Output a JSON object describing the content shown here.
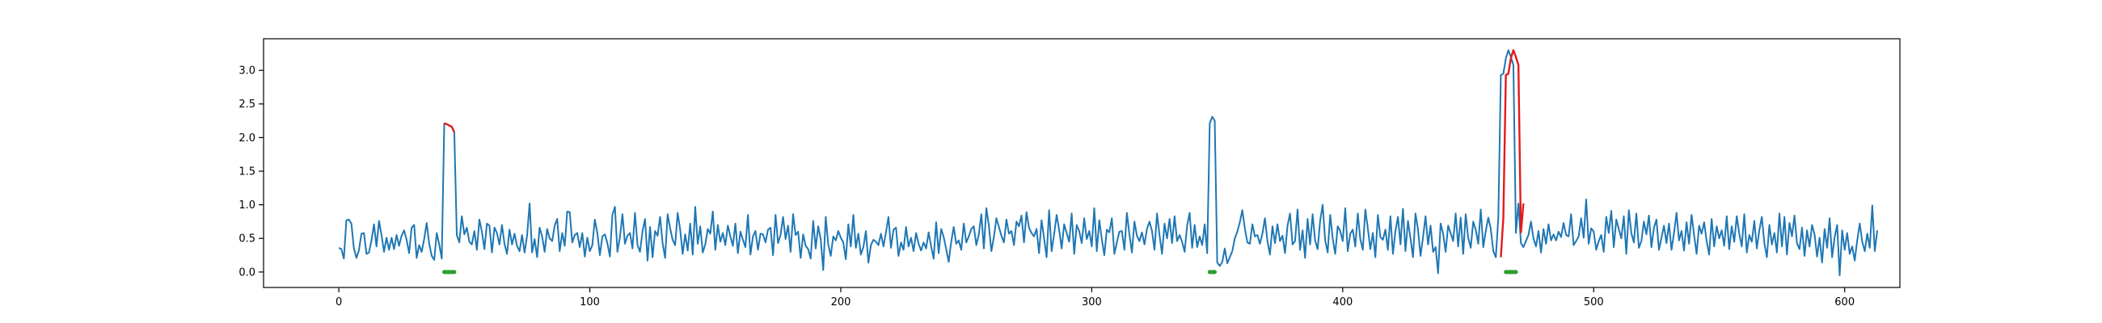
{
  "chart_data": {
    "type": "line",
    "title": "",
    "xlabel": "",
    "ylabel": "",
    "xlim": [
      -30,
      622
    ],
    "ylim": [
      -0.23,
      3.47
    ],
    "grid": false,
    "x_ticks": [
      0,
      100,
      200,
      300,
      400,
      500,
      600
    ],
    "x_tick_labels": [
      "0",
      "100",
      "200",
      "300",
      "400",
      "500",
      "600"
    ],
    "y_ticks": [
      0.0,
      0.5,
      1.0,
      1.5,
      2.0,
      2.5,
      3.0
    ],
    "y_tick_labels": [
      "0.0",
      "0.5",
      "1.0",
      "1.5",
      "2.0",
      "2.5",
      "3.0"
    ],
    "colors": {
      "signal": "#1f77b4",
      "anomaly": "#e41a1c",
      "event": "#2ca02c"
    },
    "series": [
      {
        "role": "signal",
        "x_start": 0,
        "y": [
          0.36,
          0.34,
          0.2,
          0.77,
          0.78,
          0.72,
          0.35,
          0.21,
          0.32,
          0.57,
          0.58,
          0.27,
          0.29,
          0.47,
          0.71,
          0.38,
          0.76,
          0.55,
          0.3,
          0.51,
          0.33,
          0.51,
          0.34,
          0.55,
          0.39,
          0.54,
          0.62,
          0.48,
          0.28,
          0.66,
          0.7,
          0.21,
          0.4,
          0.3,
          0.49,
          0.73,
          0.42,
          0.24,
          0.18,
          0.58,
          0.41,
          0.2,
          2.21,
          2.2,
          2.18,
          2.16,
          2.08,
          0.55,
          0.44,
          0.83,
          0.56,
          0.66,
          0.45,
          0.41,
          0.61,
          0.33,
          0.78,
          0.6,
          0.34,
          0.72,
          0.69,
          0.29,
          0.66,
          0.58,
          0.41,
          0.7,
          0.42,
          0.27,
          0.63,
          0.41,
          0.57,
          0.39,
          0.31,
          0.55,
          0.29,
          0.54,
          1.02,
          0.29,
          0.49,
          0.22,
          0.66,
          0.53,
          0.3,
          0.64,
          0.5,
          0.46,
          0.69,
          0.79,
          0.31,
          0.58,
          0.39,
          0.9,
          0.89,
          0.44,
          0.55,
          0.58,
          0.37,
          0.58,
          0.23,
          0.51,
          0.31,
          0.4,
          0.78,
          0.58,
          0.25,
          0.53,
          0.56,
          0.43,
          0.23,
          0.85,
          0.97,
          0.3,
          0.52,
          0.86,
          0.42,
          0.54,
          0.58,
          0.35,
          0.88,
          0.4,
          0.3,
          0.61,
          0.79,
          0.17,
          0.67,
          0.22,
          0.61,
          0.54,
          0.82,
          0.43,
          0.21,
          0.86,
          0.65,
          0.48,
          0.4,
          0.88,
          0.63,
          0.27,
          0.56,
          0.32,
          0.72,
          0.26,
          0.97,
          0.42,
          0.68,
          0.29,
          0.41,
          0.64,
          0.57,
          0.9,
          0.33,
          0.7,
          0.45,
          0.58,
          0.4,
          0.69,
          0.53,
          0.39,
          0.72,
          0.28,
          0.6,
          0.48,
          0.37,
          0.85,
          0.26,
          0.53,
          0.61,
          0.33,
          0.57,
          0.56,
          0.44,
          0.63,
          0.66,
          0.25,
          0.85,
          0.43,
          0.55,
          0.82,
          0.49,
          0.69,
          0.3,
          0.86,
          0.55,
          0.6,
          0.21,
          0.56,
          0.39,
          0.34,
          0.2,
          0.76,
          0.35,
          0.68,
          0.49,
          0.03,
          0.82,
          0.41,
          0.24,
          0.53,
          0.47,
          0.61,
          0.51,
          0.44,
          0.19,
          0.71,
          0.38,
          0.85,
          0.36,
          0.57,
          0.26,
          0.37,
          0.61,
          0.14,
          0.4,
          0.48,
          0.45,
          0.4,
          0.57,
          0.38,
          0.59,
          0.82,
          0.36,
          0.63,
          0.66,
          0.24,
          0.44,
          0.33,
          0.67,
          0.38,
          0.51,
          0.31,
          0.58,
          0.42,
          0.32,
          0.44,
          0.35,
          0.59,
          0.38,
          0.2,
          0.74,
          0.28,
          0.64,
          0.52,
          0.34,
          0.15,
          0.45,
          0.67,
          0.42,
          0.47,
          0.33,
          0.72,
          0.44,
          0.53,
          0.64,
          0.68,
          0.4,
          0.56,
          0.86,
          0.35,
          0.95,
          0.69,
          0.31,
          0.52,
          0.8,
          0.67,
          0.54,
          0.44,
          0.78,
          0.57,
          0.61,
          0.4,
          0.75,
          0.68,
          0.84,
          0.44,
          0.89,
          0.66,
          0.58,
          0.53,
          0.64,
          0.28,
          0.77,
          0.5,
          0.22,
          0.92,
          0.31,
          0.56,
          0.85,
          0.63,
          0.35,
          0.71,
          0.58,
          0.45,
          0.87,
          0.27,
          0.7,
          0.61,
          0.43,
          0.8,
          0.49,
          0.61,
          0.38,
          0.95,
          0.31,
          0.77,
          0.49,
          0.25,
          0.63,
          0.59,
          0.8,
          0.27,
          0.44,
          0.6,
          0.61,
          0.33,
          0.88,
          0.56,
          0.29,
          0.75,
          0.54,
          0.46,
          0.59,
          0.41,
          0.64,
          0.75,
          0.61,
          0.33,
          0.87,
          0.55,
          0.27,
          0.72,
          0.5,
          0.79,
          0.43,
          0.83,
          0.46,
          0.55,
          0.45,
          0.3,
          0.69,
          0.88,
          0.36,
          0.7,
          0.37,
          0.53,
          0.4,
          0.71,
          0.28,
          2.21,
          2.31,
          2.25,
          0.14,
          0.09,
          0.15,
          0.35,
          0.13,
          0.22,
          0.31,
          0.5,
          0.6,
          0.74,
          0.92,
          0.65,
          0.44,
          0.42,
          0.71,
          0.53,
          0.55,
          0.42,
          0.57,
          0.8,
          0.46,
          0.26,
          0.68,
          0.43,
          0.71,
          0.46,
          0.54,
          0.28,
          0.69,
          0.87,
          0.41,
          0.46,
          0.93,
          0.33,
          0.62,
          0.21,
          0.79,
          0.41,
          0.86,
          0.47,
          0.34,
          0.76,
          1.0,
          0.47,
          0.29,
          0.85,
          0.5,
          0.27,
          0.68,
          0.61,
          0.46,
          0.95,
          0.31,
          0.57,
          0.63,
          0.38,
          0.87,
          0.49,
          0.33,
          0.93,
          0.65,
          0.34,
          0.58,
          0.22,
          0.85,
          0.52,
          0.48,
          0.63,
          0.33,
          0.83,
          0.27,
          0.61,
          0.82,
          0.41,
          0.94,
          0.31,
          0.76,
          0.5,
          0.22,
          0.87,
          0.63,
          0.24,
          0.52,
          0.83,
          0.41,
          0.69,
          0.3,
          0.37,
          -0.02,
          0.72,
          0.57,
          0.3,
          0.69,
          0.58,
          0.46,
          0.87,
          0.38,
          0.81,
          0.27,
          0.86,
          0.51,
          0.36,
          0.75,
          0.63,
          0.42,
          0.93,
          0.37,
          0.61,
          0.81,
          0.64,
          0.31,
          0.22,
          0.81,
          2.93,
          2.95,
          3.18,
          3.3,
          3.2,
          3.08,
          0.58,
          1.02,
          0.43,
          0.37,
          0.46,
          0.55,
          0.75,
          0.5,
          0.38,
          0.61,
          0.29,
          0.64,
          0.42,
          0.71,
          0.47,
          0.56,
          0.47,
          0.6,
          0.52,
          0.73,
          0.55,
          0.53,
          0.86,
          0.4,
          0.46,
          0.53,
          0.8,
          0.51,
          1.08,
          0.42,
          0.65,
          0.6,
          0.33,
          0.46,
          0.55,
          0.3,
          0.82,
          0.58,
          0.91,
          0.37,
          0.78,
          0.64,
          0.5,
          0.83,
          0.27,
          0.92,
          0.58,
          0.44,
          0.87,
          0.36,
          0.46,
          0.75,
          0.56,
          0.84,
          0.37,
          0.66,
          0.78,
          0.33,
          0.51,
          0.69,
          0.43,
          0.72,
          0.33,
          0.58,
          0.88,
          0.47,
          0.61,
          0.32,
          0.74,
          0.42,
          0.85,
          0.55,
          0.27,
          0.69,
          0.57,
          0.74,
          0.46,
          0.26,
          0.79,
          0.38,
          0.68,
          0.5,
          0.62,
          0.39,
          0.83,
          0.34,
          0.68,
          0.45,
          0.83,
          0.57,
          0.38,
          0.86,
          0.29,
          0.55,
          0.45,
          0.76,
          0.35,
          0.62,
          0.82,
          0.43,
          0.22,
          0.7,
          0.41,
          0.58,
          0.29,
          0.87,
          0.38,
          0.82,
          0.26,
          0.73,
          0.53,
          0.84,
          0.43,
          0.34,
          0.66,
          0.24,
          0.62,
          0.38,
          0.7,
          0.56,
          0.23,
          0.51,
          0.14,
          0.64,
          0.36,
          0.8,
          0.22,
          0.52,
          0.7,
          -0.05,
          0.62,
          0.33,
          0.58,
          0.27,
          0.38,
          0.17,
          0.47,
          0.72,
          0.45,
          0.31,
          0.57,
          0.36,
          0.99,
          0.31,
          0.62
        ]
      }
    ],
    "anomaly_segments": [
      {
        "x": [
          42,
          43,
          44,
          45,
          46
        ],
        "y": [
          2.21,
          2.2,
          2.18,
          2.16,
          2.08
        ]
      },
      {
        "x": [
          463,
          464,
          465,
          466,
          467,
          468,
          469,
          470,
          471
        ],
        "y": [
          0.22,
          0.81,
          2.93,
          2.95,
          3.18,
          3.3,
          3.2,
          3.08,
          0.58
        ]
      },
      {
        "x": [
          471,
          472
        ],
        "y": [
          0.58,
          1.02
        ]
      }
    ],
    "event_markers": [
      {
        "x_start": 42,
        "x_end": 46,
        "y": 0.0
      },
      {
        "x_start": 347,
        "x_end": 349,
        "y": 0.0
      },
      {
        "x_start": 465,
        "x_end": 469,
        "y": 0.0
      }
    ]
  }
}
